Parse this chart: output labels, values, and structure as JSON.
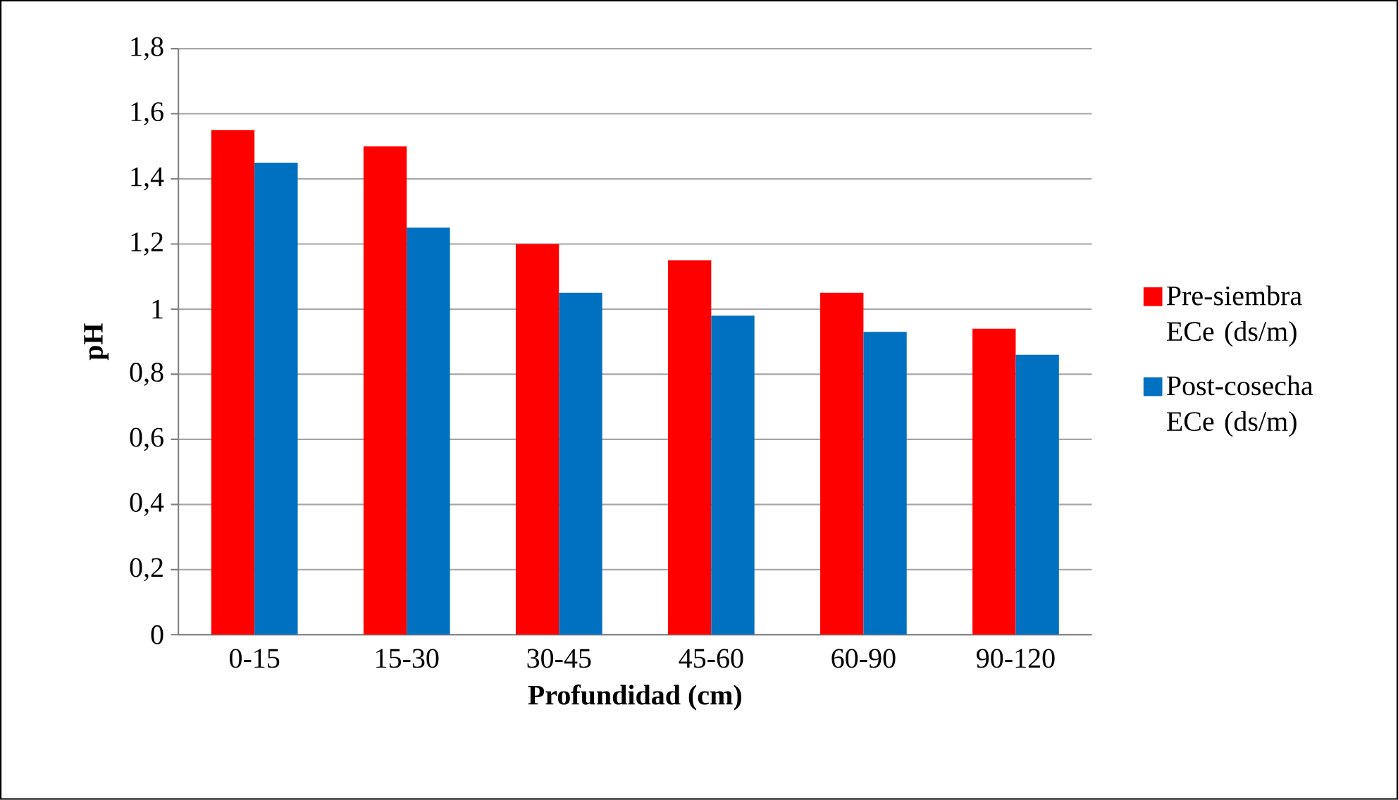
{
  "chart_data": {
    "type": "bar",
    "xlabel": "Profundidad (cm)",
    "ylabel": "pH",
    "categories": [
      "0-15",
      "15-30",
      "30-45",
      "45-60",
      "60-90",
      "90-120"
    ],
    "series": [
      {
        "name": "Pre-siembra ECe (ds/m)",
        "color": "#ff0000",
        "values": [
          1.55,
          1.5,
          1.2,
          1.15,
          1.05,
          0.94
        ]
      },
      {
        "name": "Post-cosecha ECe (ds/m)",
        "color": "#0070c0",
        "values": [
          1.45,
          1.25,
          1.05,
          0.98,
          0.93,
          0.86
        ]
      }
    ],
    "ylim": [
      0,
      1.8
    ],
    "yticks": [
      {
        "value": 0,
        "label": "0"
      },
      {
        "value": 0.2,
        "label": "0,2"
      },
      {
        "value": 0.4,
        "label": "0,4"
      },
      {
        "value": 0.6,
        "label": "0,6"
      },
      {
        "value": 0.8,
        "label": "0,8"
      },
      {
        "value": 1,
        "label": "1"
      },
      {
        "value": 1.2,
        "label": "1,2"
      },
      {
        "value": 1.4,
        "label": "1,4"
      },
      {
        "value": 1.6,
        "label": "1,6"
      },
      {
        "value": 1.8,
        "label": "1,8"
      }
    ],
    "grid": "y",
    "legend": "right"
  }
}
